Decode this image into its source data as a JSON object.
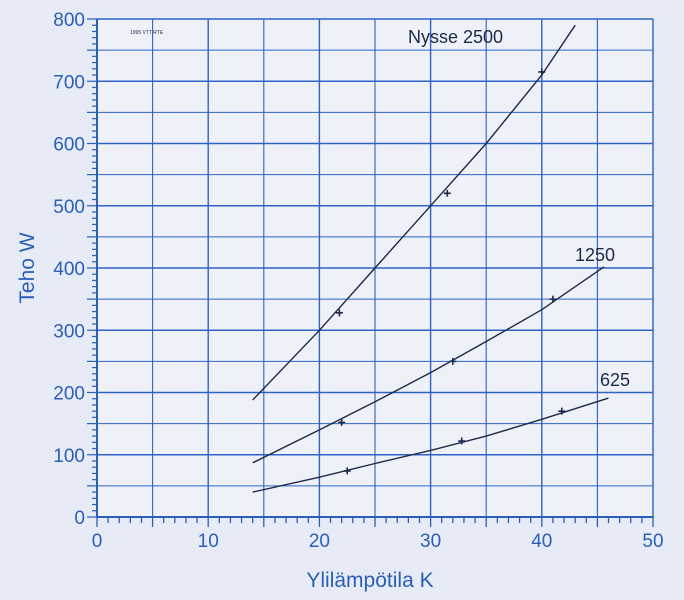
{
  "chart_data": {
    "type": "line",
    "title": "",
    "xlabel": "Ylilämpötila K",
    "ylabel": "Teho W",
    "xlim": [
      0,
      50
    ],
    "ylim": [
      0,
      800
    ],
    "xticks": [
      0,
      10,
      20,
      30,
      40,
      50
    ],
    "yticks": [
      0,
      100,
      200,
      300,
      400,
      500,
      600,
      700,
      800
    ],
    "grid": true,
    "stamp_text": "1995 VTT RTE",
    "colors": {
      "axis": "#2a5fb8",
      "grid": "#2f62c4",
      "line": "#1c2a4a",
      "background": "#e7ebf6"
    },
    "series": [
      {
        "name": "Nysse 2500",
        "line": {
          "x": [
            14,
            20,
            25,
            30,
            35,
            40,
            43
          ],
          "y": [
            188,
            300,
            400,
            500,
            600,
            710,
            790
          ]
        },
        "points": {
          "x": [
            21.8,
            31.5,
            40.0
          ],
          "y": [
            328,
            520,
            715
          ]
        }
      },
      {
        "name": "1250",
        "line": {
          "x": [
            14,
            20,
            25,
            30,
            35,
            40,
            45.6
          ],
          "y": [
            87,
            140,
            185,
            232,
            282,
            333,
            402
          ]
        },
        "points": {
          "x": [
            22.0,
            32.0,
            41.0
          ],
          "y": [
            152,
            250,
            350
          ]
        }
      },
      {
        "name": "625",
        "line": {
          "x": [
            14,
            20,
            25,
            30,
            35,
            40,
            46
          ],
          "y": [
            40,
            64,
            86,
            107,
            130,
            157,
            191
          ]
        },
        "points": {
          "x": [
            22.5,
            32.8,
            41.8
          ],
          "y": [
            74,
            122,
            170
          ]
        }
      }
    ]
  }
}
